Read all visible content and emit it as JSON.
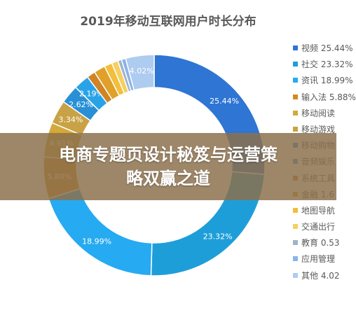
{
  "chart_data": {
    "type": "pie",
    "title": "2019年移动互联网用户时长分布",
    "donut": true,
    "legend_position": "right",
    "labels": [
      "视频",
      "社交",
      "资讯",
      "输入法",
      "移动阅读",
      "移动游戏",
      "移动购物",
      "音频娱乐",
      "系统工具",
      "金融",
      "地图导航",
      "交通出行",
      "教育",
      "应用管理",
      "其他"
    ],
    "values": [
      25.44,
      23.32,
      18.99,
      5.88,
      4.91,
      3.34,
      2.62,
      2.19,
      1.2,
      1.6,
      1.1,
      0.9,
      0.53,
      0.6,
      4.02
    ],
    "legend_text": [
      "视频 25.44%",
      "社交 23.32%",
      "资讯 18.99%",
      "输入法 5.88%",
      "移动阅读",
      "移动游戏",
      "移动购物",
      "音频娱乐",
      "系统工具",
      "金融 1.6",
      "地图导航",
      "交通出行",
      "教育 0.53",
      "应用管理",
      "其他 4.02"
    ],
    "data_labels": [
      "25.44%",
      "23.32%",
      "18.99%",
      "5.88%",
      "4.91%",
      "3.34%",
      "2.62%",
      "2.19%",
      "",
      "",
      "",
      "",
      "",
      "",
      "4.02%"
    ],
    "colors": [
      "#2e75d4",
      "#1e9ed9",
      "#26aaf2",
      "#d38a1c",
      "#d4a93a",
      "#c8a245",
      "#2a90d6",
      "#29a3e8",
      "#cf8425",
      "#e0a02a",
      "#f2be3c",
      "#f5d060",
      "#9fb3cc",
      "#8cb3e8",
      "#aecbf0"
    ]
  },
  "banner": {
    "line1": "电商专题页设计秘笈与运营策",
    "line2": "略双赢之道"
  }
}
